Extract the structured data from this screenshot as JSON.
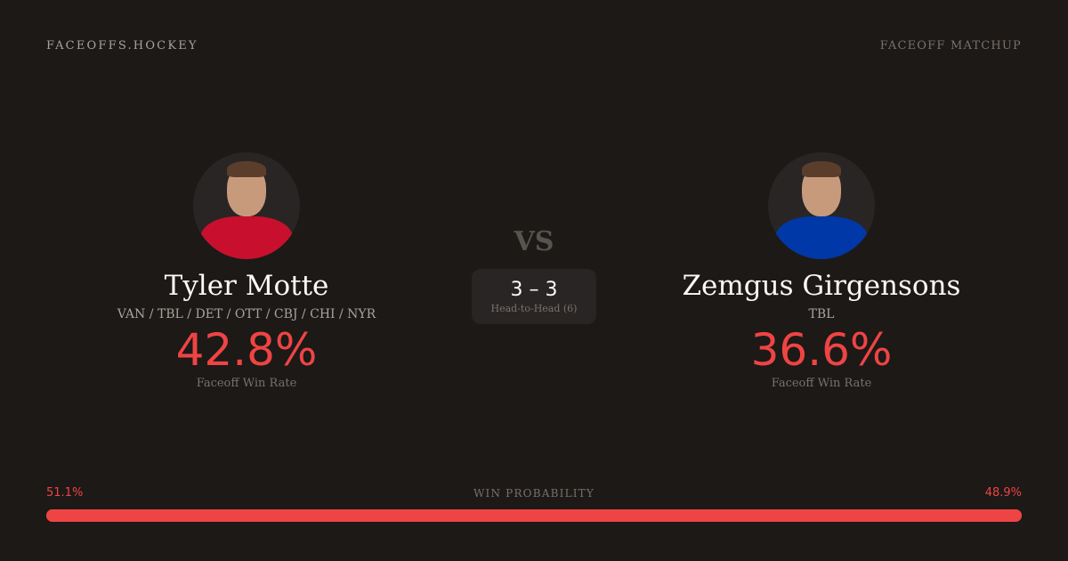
{
  "header": {
    "brand": "FACEOFFS.HOCKEY",
    "tag": "FACEOFF MATCHUP"
  },
  "players": [
    {
      "name": "Tyler Motte",
      "teams": "VAN / TBL / DET / OTT / CBJ / CHI / NYR",
      "win_rate": "42.8%",
      "win_rate_label": "Faceoff Win Rate",
      "jersey_color": "#c8102e"
    },
    {
      "name": "Zemgus Girgensons",
      "teams": "TBL",
      "win_rate": "36.6%",
      "win_rate_label": "Faceoff Win Rate",
      "jersey_color": "#0038a8"
    }
  ],
  "versus": "VS",
  "head_to_head": {
    "score": "3 – 3",
    "label": "Head-to-Head (6)"
  },
  "win_probability": {
    "label": "WIN PROBABILITY",
    "left": "51.1%",
    "right": "48.9%",
    "left_value": 51.1,
    "right_value": 48.9,
    "color": "#ef4444"
  }
}
